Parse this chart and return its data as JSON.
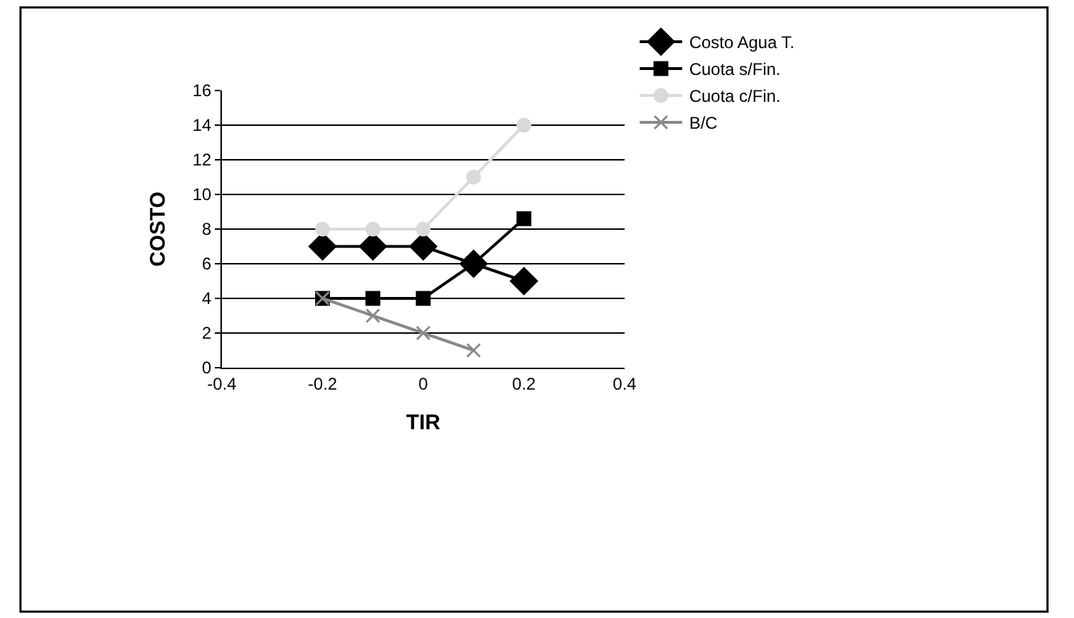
{
  "chart_data": {
    "type": "line",
    "xlabel": "TIR",
    "ylabel": "COSTO",
    "x": [
      -0.2,
      -0.1,
      0,
      0.1,
      0.2
    ],
    "series": [
      {
        "name": "Costo Agua T.",
        "color": "#000000",
        "marker": "diamond",
        "values": [
          7,
          7,
          7,
          6,
          5
        ]
      },
      {
        "name": "Cuota s/Fin.",
        "color": "#000000",
        "marker": "square",
        "values": [
          4,
          4,
          4,
          6,
          8.6
        ]
      },
      {
        "name": "Cuota c/Fin.",
        "color": "#d9d9d9",
        "marker": "circle",
        "values": [
          8,
          8,
          8,
          11,
          14
        ]
      },
      {
        "name": "B/C",
        "color": "#888888",
        "marker": "cross",
        "values": [
          4,
          3,
          2,
          1,
          null
        ]
      }
    ],
    "xlim": [
      -0.4,
      0.4
    ],
    "xticks": [
      -0.4,
      -0.2,
      0,
      0.2,
      0.4
    ],
    "ylim": [
      0,
      16
    ],
    "yticks": [
      0,
      2,
      4,
      6,
      8,
      10,
      12,
      14,
      16
    ],
    "grid": "y",
    "legend": "top right"
  }
}
